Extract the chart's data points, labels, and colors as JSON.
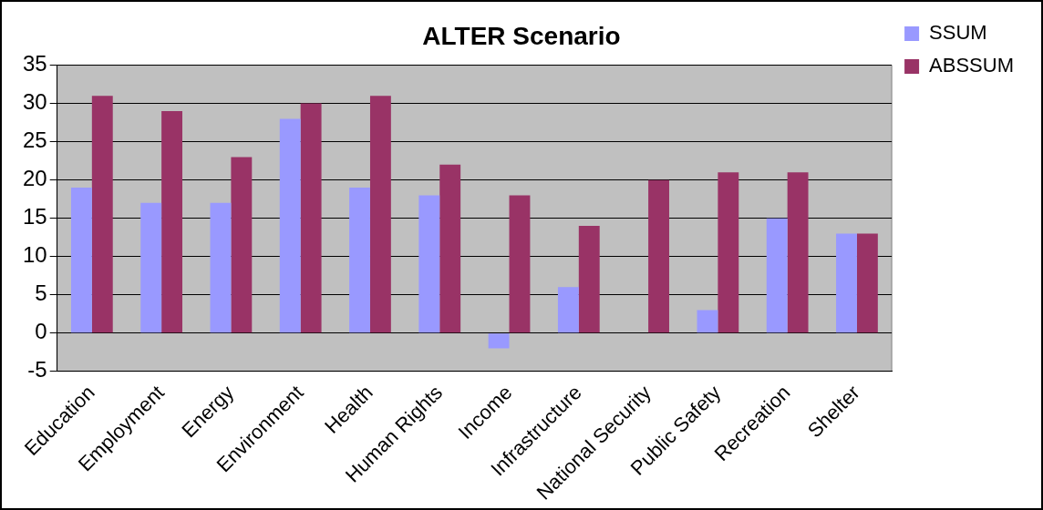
{
  "chart_data": {
    "type": "bar",
    "title": "ALTER Scenario",
    "categories": [
      "Education",
      "Employment",
      "Energy",
      "Environment",
      "Health",
      "Human Rights",
      "Income",
      "Infrastructure",
      "National Security",
      "Public Safety",
      "Recreation",
      "Shelter"
    ],
    "series": [
      {
        "name": "SSUM",
        "color": "#9999ff",
        "values": [
          19,
          17,
          17,
          28,
          19,
          18,
          -2,
          6,
          0,
          3,
          15,
          13
        ]
      },
      {
        "name": "ABSSUM",
        "color": "#993366",
        "values": [
          31,
          29,
          23,
          30,
          31,
          22,
          18,
          14,
          20,
          21,
          21,
          13
        ]
      }
    ],
    "ylim": [
      -5,
      35
    ],
    "yticks": [
      -5,
      0,
      5,
      10,
      15,
      20,
      25,
      30,
      35
    ],
    "grid": "y",
    "legend": "top right"
  }
}
